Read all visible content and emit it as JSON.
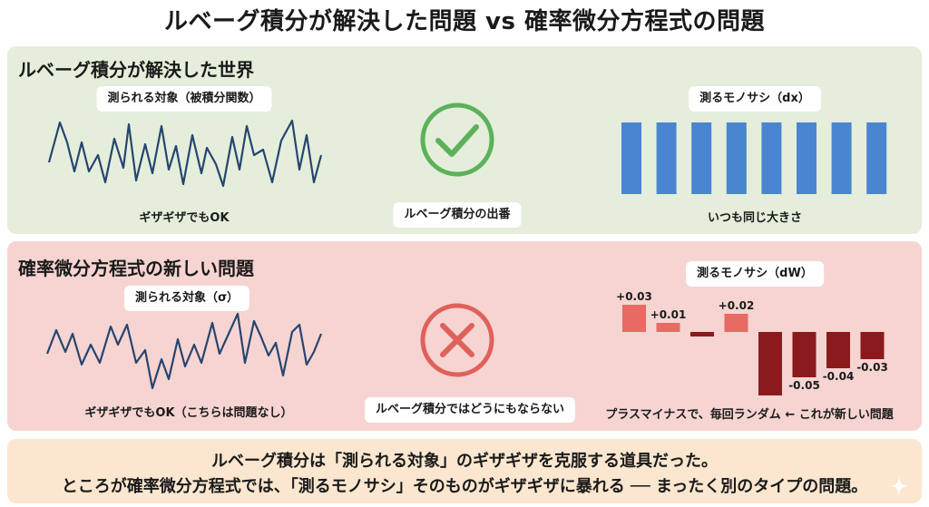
{
  "title": "ルベーグ積分が解決した問題 vs 確率微分方程式の問題",
  "lebesgue_panel": {
    "heading": "ルベーグ積分が解決した世界",
    "target_label": "測られる対象（被積分関数）",
    "target_caption": "ギザギザでもOK",
    "center_label": "ルベーグ積分の出番",
    "center_icon": "check-icon",
    "ruler_label": "測るモノサシ（dx）",
    "ruler_caption": "いつも同じ大きさ",
    "bar_count": 8,
    "colors": {
      "wave": "#27456e",
      "bars": "#4a86d0",
      "icon": "#5cb15a"
    }
  },
  "sde_panel": {
    "heading": "確率微分方程式の新しい問題",
    "target_label": "測られる対象（σ）",
    "target_caption": "ギザギザでもOK（こちらは問題なし）",
    "center_label": "ルベーグ積分ではどうにもならない",
    "center_icon": "cross-icon",
    "ruler_label": "測るモノサシ（dW）",
    "ruler_caption": "プラスマイナスで、毎回ランダム ← これが新しい問題",
    "increments": [
      {
        "value": 0.03,
        "label": "+0.03"
      },
      {
        "value": 0.01,
        "label": "+0.01"
      },
      {
        "value": -0.005,
        "label": ""
      },
      {
        "value": 0.02,
        "label": "+0.02"
      },
      {
        "value": -0.07,
        "label": ""
      },
      {
        "value": -0.05,
        "label": "-0.05"
      },
      {
        "value": -0.04,
        "label": "-0.04"
      },
      {
        "value": -0.03,
        "label": "-0.03"
      }
    ],
    "colors": {
      "wave": "#27456e",
      "positive": "#e86a63",
      "negative": "#8b1a1c",
      "icon": "#e0605b"
    }
  },
  "note": {
    "line1": "ルベーグ積分は「測られる対象」のギザギザを克服する道具だった。",
    "line2": "ところが確率微分方程式では、「測るモノサシ」そのものがギザギザに暴れる ── まったく別のタイプの問題。"
  }
}
